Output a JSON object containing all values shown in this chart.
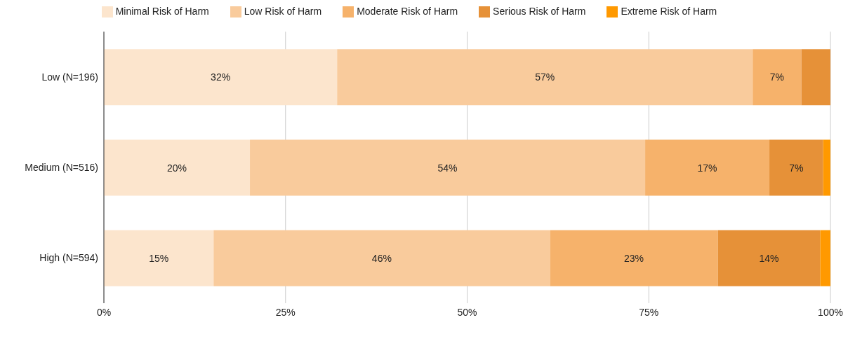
{
  "chart_data": {
    "type": "bar",
    "orientation": "horizontal",
    "stacked": true,
    "categories": [
      "Low (N=196)",
      "Medium (N=516)",
      "High (N=594)"
    ],
    "series": [
      {
        "name": "Minimal Risk of Harm",
        "color": "#fce5cd",
        "values": [
          32.1,
          20.1,
          15.1
        ],
        "value_labels": [
          "32%",
          "20%",
          "15%"
        ]
      },
      {
        "name": "Low Risk of Harm",
        "color": "#f9cb9c",
        "values": [
          57.2,
          54.4,
          46.3
        ],
        "value_labels": [
          "57%",
          "54%",
          "46%"
        ]
      },
      {
        "name": "Moderate Risk of Harm",
        "color": "#f6b26b",
        "values": [
          6.7,
          17.1,
          23.1
        ],
        "value_labels": [
          "7%",
          "17%",
          "23%"
        ]
      },
      {
        "name": "Serious Risk of Harm",
        "color": "#e69138",
        "values": [
          4.0,
          7.4,
          14.1
        ],
        "value_labels": [
          null,
          "7%",
          "14%"
        ]
      },
      {
        "name": "Extreme Risk of Harm",
        "color": "#ff9900",
        "values": [
          0,
          1.0,
          1.4
        ],
        "value_labels": [
          null,
          null,
          null
        ]
      }
    ],
    "xlim": [
      0,
      100
    ],
    "xticks": [
      {
        "value": 0,
        "label": "0%"
      },
      {
        "value": 25,
        "label": "25%"
      },
      {
        "value": 50,
        "label": "50%"
      },
      {
        "value": 75,
        "label": "75%"
      },
      {
        "value": 100,
        "label": "100%"
      }
    ],
    "grid": "x",
    "legend": "top"
  }
}
